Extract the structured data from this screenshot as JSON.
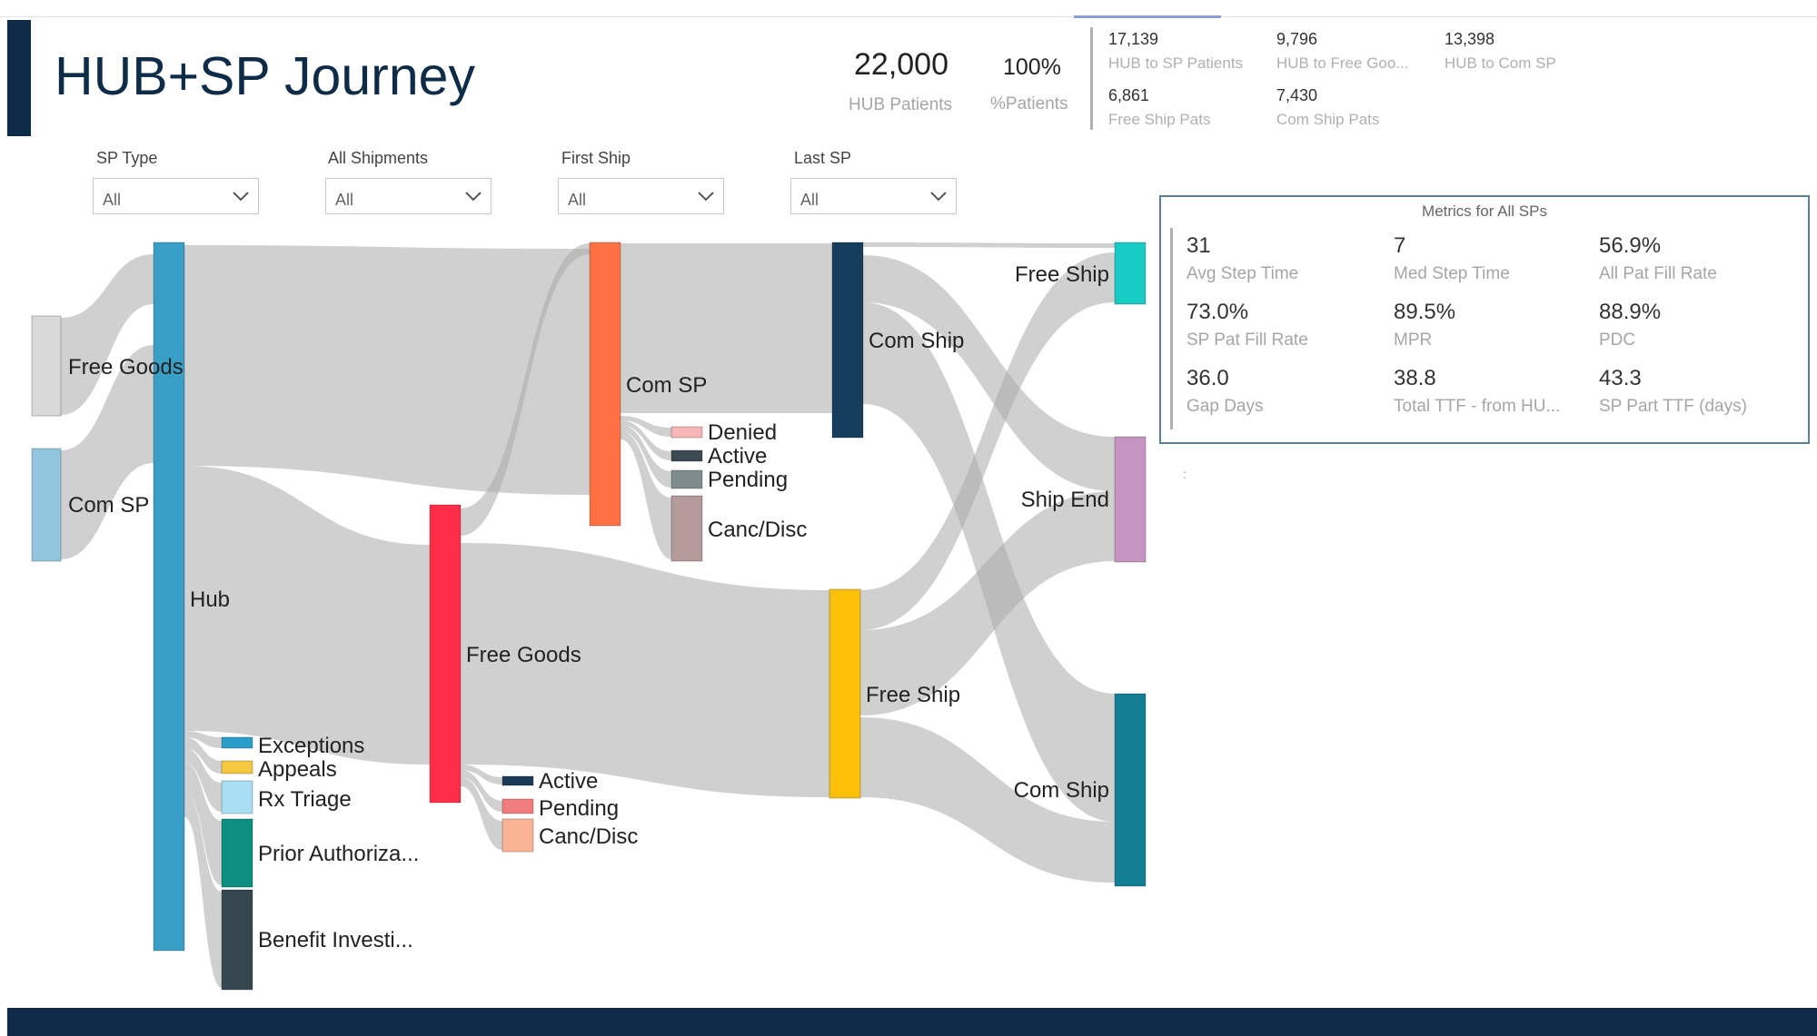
{
  "header": {
    "title": "HUB+SP Journey"
  },
  "kpis": {
    "hub_patients": {
      "value": "22,000",
      "label": "HUB Patients"
    },
    "pct_patients": {
      "value": "100%",
      "label": "%Patients"
    },
    "hub_to_sp": {
      "value": "17,139",
      "label": "HUB to SP Patients"
    },
    "hub_to_free": {
      "value": "9,796",
      "label": "HUB to Free Goo..."
    },
    "hub_to_com": {
      "value": "13,398",
      "label": "HUB to Com SP"
    },
    "free_ship": {
      "value": "6,861",
      "label": "Free Ship Pats"
    },
    "com_ship": {
      "value": "7,430",
      "label": "Com Ship Pats"
    }
  },
  "slicers": [
    {
      "label": "SP Type",
      "value": "All"
    },
    {
      "label": "All Shipments",
      "value": "All"
    },
    {
      "label": "First Ship",
      "value": "All"
    },
    {
      "label": "Last SP",
      "value": "All"
    }
  ],
  "metrics": {
    "title": "Metrics for All SPs",
    "items": [
      {
        "value": "31",
        "label": "Avg Step Time"
      },
      {
        "value": "7",
        "label": "Med Step Time"
      },
      {
        "value": "56.9%",
        "label": "All Pat Fill Rate"
      },
      {
        "value": "73.0%",
        "label": "SP Pat Fill Rate"
      },
      {
        "value": "89.5%",
        "label": "MPR"
      },
      {
        "value": "88.9%",
        "label": "PDC"
      },
      {
        "value": "36.0",
        "label": "Gap Days"
      },
      {
        "value": "38.8",
        "label": "Total TTF - from HU..."
      },
      {
        "value": "43.3",
        "label": "SP Part TTF (days)"
      }
    ]
  },
  "misc": {
    "stray_mark": ":"
  },
  "chart_data": {
    "type": "sankey",
    "title": "HUB+SP Journey",
    "nodes": [
      {
        "id": "src_free",
        "label": "Free Goods",
        "color": "#d9d9d9"
      },
      {
        "id": "src_com",
        "label": "Com SP",
        "color": "#92c5de"
      },
      {
        "id": "hub",
        "label": "Hub",
        "color": "#3a9fc7"
      },
      {
        "id": "exceptions",
        "label": "Exceptions",
        "color": "#2b9dc9"
      },
      {
        "id": "appeals",
        "label": "Appeals",
        "color": "#f5c842"
      },
      {
        "id": "rx_triage",
        "label": "Rx Triage",
        "color": "#a8dff2"
      },
      {
        "id": "prior_auth",
        "label": "Prior Authoriza...",
        "color": "#0a8f80"
      },
      {
        "id": "benefit_inv",
        "label": "Benefit Investi...",
        "color": "#37474f"
      },
      {
        "id": "com_sp",
        "label": "Com SP",
        "color": "#ff7043"
      },
      {
        "id": "free_goods",
        "label": "Free Goods",
        "color": "#ff2d47"
      },
      {
        "id": "com_denied",
        "label": "Denied",
        "color": "#f4b6b6"
      },
      {
        "id": "com_active",
        "label": "Active",
        "color": "#3c4a52"
      },
      {
        "id": "com_pending",
        "label": "Pending",
        "color": "#7f8c8d"
      },
      {
        "id": "com_canc",
        "label": "Canc/Disc",
        "color": "#b59a9a"
      },
      {
        "id": "free_active",
        "label": "Active",
        "color": "#1b3a57"
      },
      {
        "id": "free_pending",
        "label": "Pending",
        "color": "#f07c7c"
      },
      {
        "id": "free_canc",
        "label": "Canc/Disc",
        "color": "#f9b496"
      },
      {
        "id": "com_ship",
        "label": "Com Ship",
        "color": "#163e5c"
      },
      {
        "id": "free_ship",
        "label": "Free Ship",
        "color": "#ffc107"
      },
      {
        "id": "end_free_ship",
        "label": "Free Ship",
        "color": "#17ccc5"
      },
      {
        "id": "end_ship_end",
        "label": "Ship End",
        "color": "#c594c0"
      },
      {
        "id": "end_com_ship",
        "label": "Com Ship",
        "color": "#137f96"
      }
    ],
    "links": [
      {
        "source": "src_free",
        "target": "hub"
      },
      {
        "source": "src_com",
        "target": "hub"
      },
      {
        "source": "hub",
        "target": "com_sp"
      },
      {
        "source": "hub",
        "target": "free_goods"
      },
      {
        "source": "hub",
        "target": "exceptions"
      },
      {
        "source": "hub",
        "target": "appeals"
      },
      {
        "source": "hub",
        "target": "rx_triage"
      },
      {
        "source": "hub",
        "target": "prior_auth"
      },
      {
        "source": "hub",
        "target": "benefit_inv"
      },
      {
        "source": "free_goods",
        "target": "com_sp"
      },
      {
        "source": "free_goods",
        "target": "free_ship"
      },
      {
        "source": "free_goods",
        "target": "free_active"
      },
      {
        "source": "free_goods",
        "target": "free_pending"
      },
      {
        "source": "free_goods",
        "target": "free_canc"
      },
      {
        "source": "com_sp",
        "target": "com_ship"
      },
      {
        "source": "com_sp",
        "target": "com_denied"
      },
      {
        "source": "com_sp",
        "target": "com_active"
      },
      {
        "source": "com_sp",
        "target": "com_pending"
      },
      {
        "source": "com_sp",
        "target": "com_canc"
      },
      {
        "source": "com_ship",
        "target": "end_free_ship"
      },
      {
        "source": "com_ship",
        "target": "end_ship_end"
      },
      {
        "source": "com_ship",
        "target": "end_com_ship"
      },
      {
        "source": "free_ship",
        "target": "end_free_ship"
      },
      {
        "source": "free_ship",
        "target": "end_ship_end"
      },
      {
        "source": "free_ship",
        "target": "end_com_ship"
      }
    ]
  }
}
